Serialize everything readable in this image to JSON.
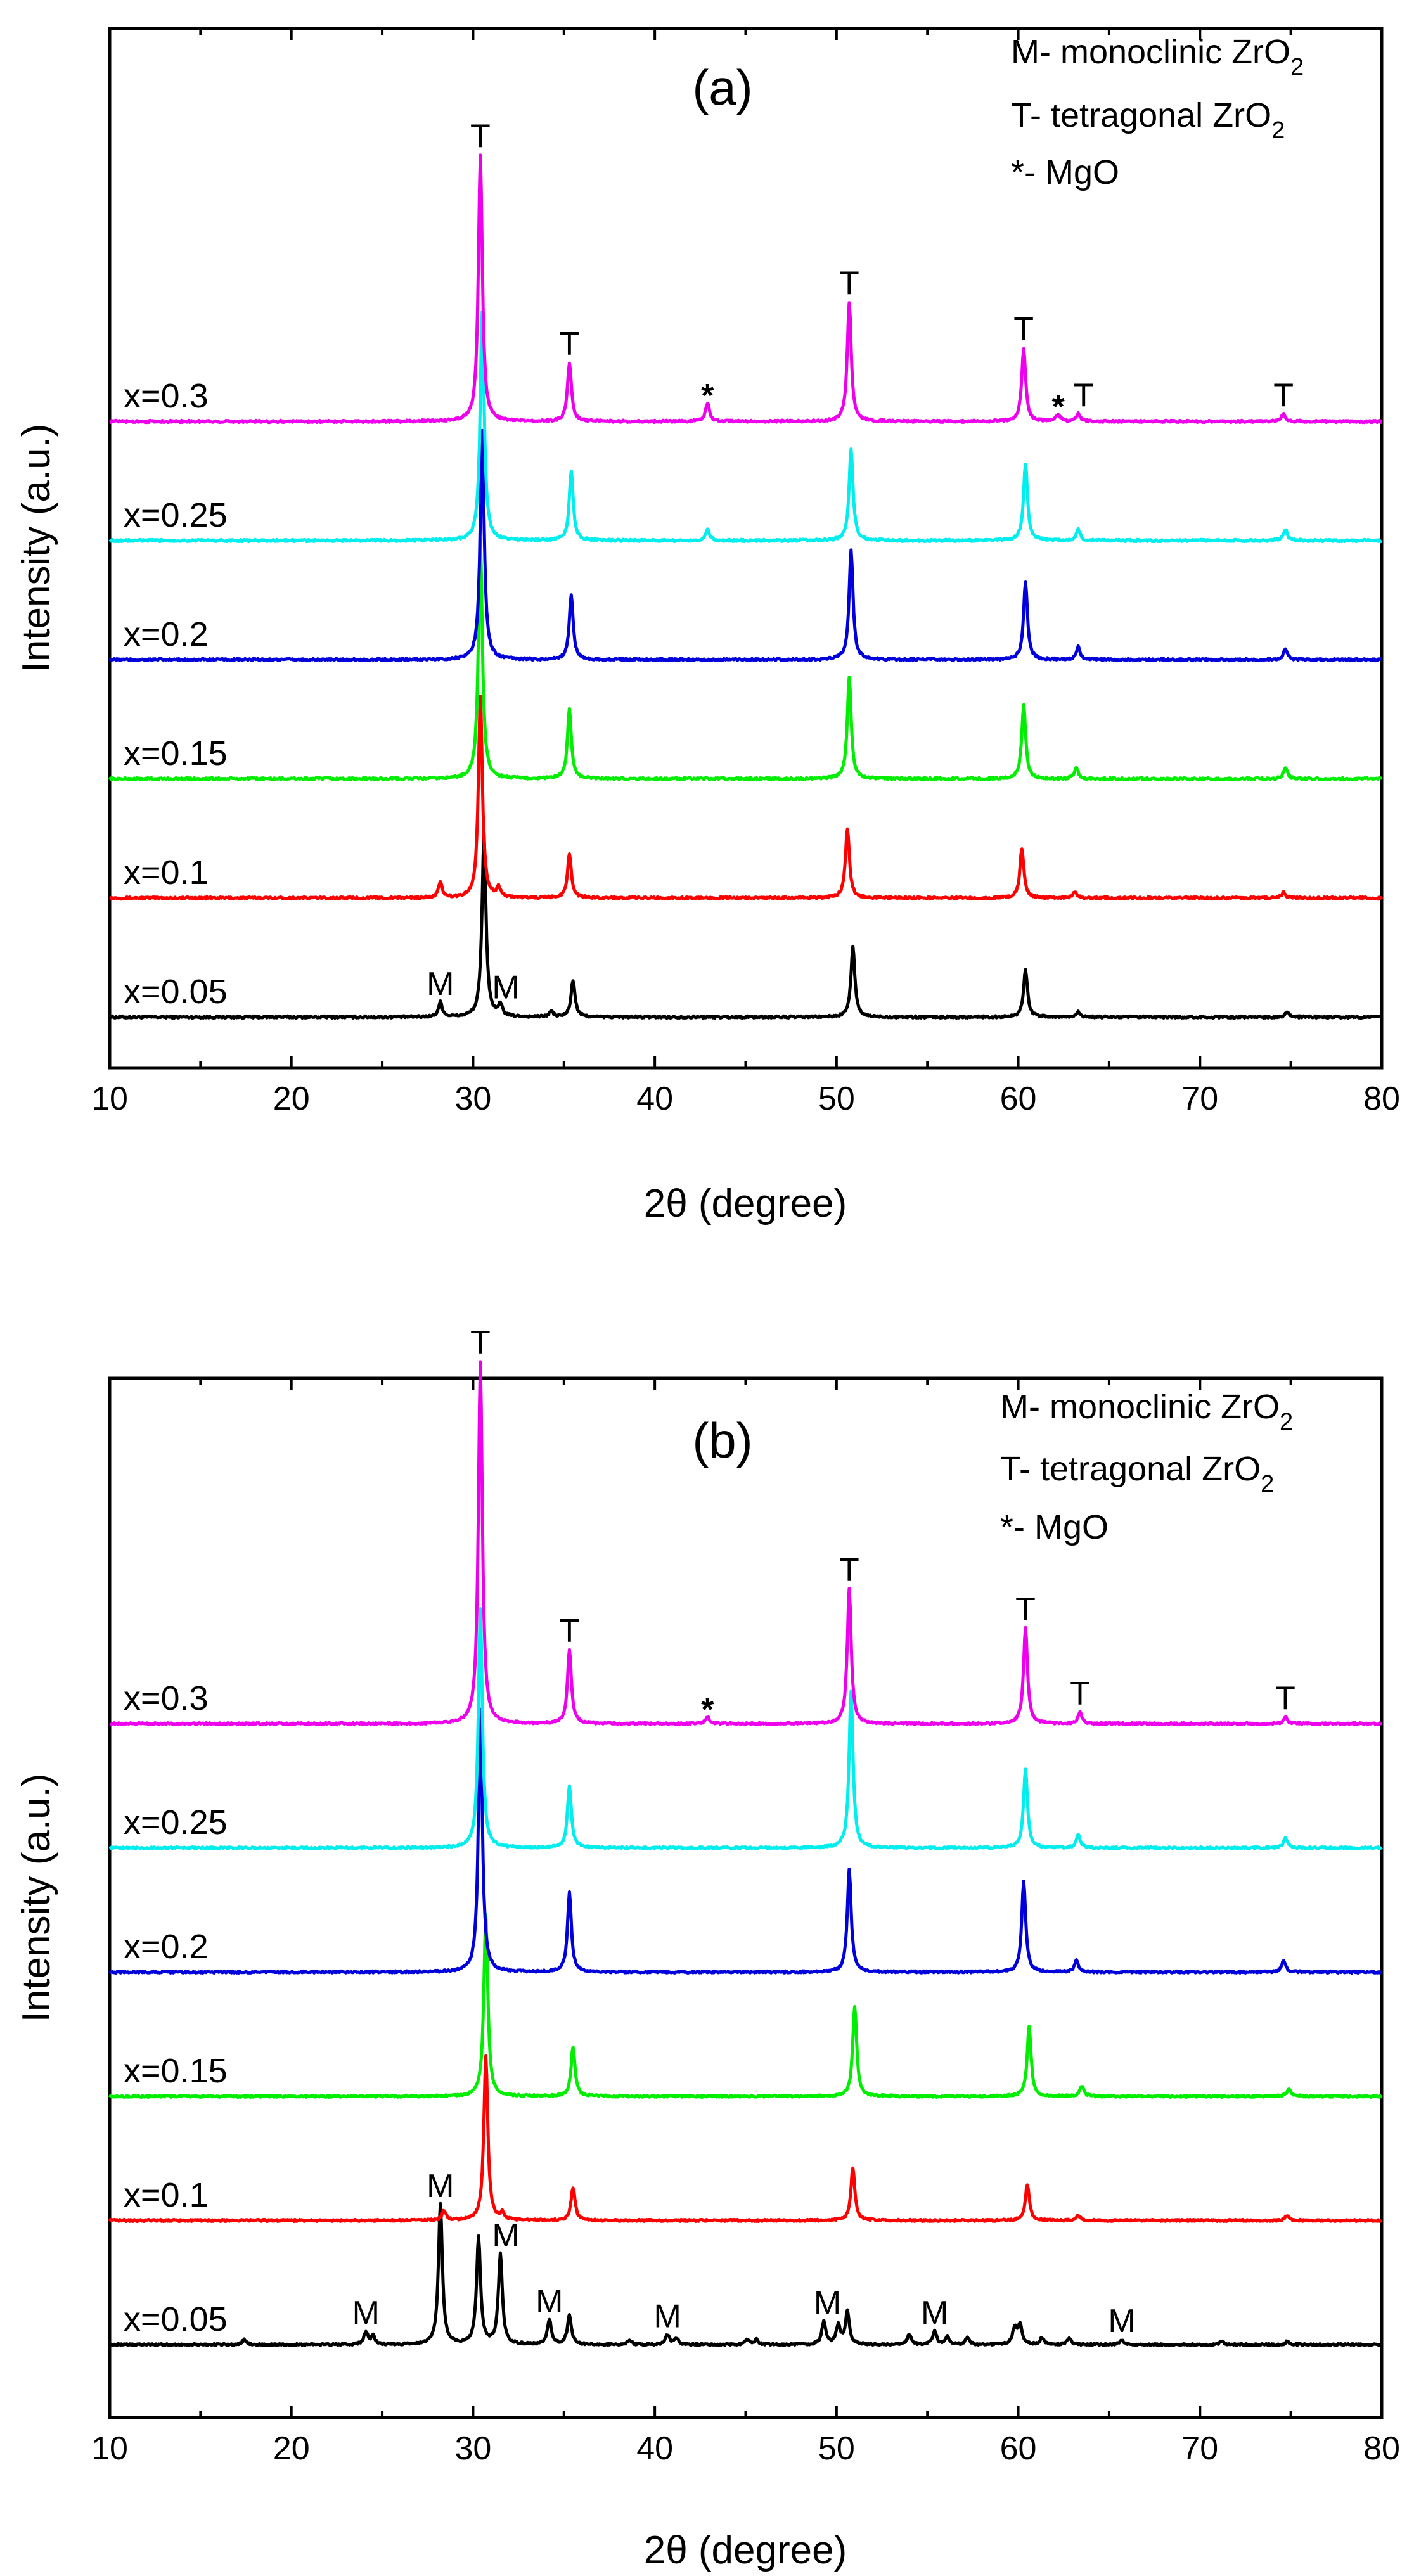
{
  "figure": {
    "xlabel": "2θ (degree)",
    "ylabel": "Intensity (a.u.)"
  },
  "chart_data": [
    {
      "type": "line",
      "panel_label": "(a)",
      "xlim": [
        10,
        80
      ],
      "x_ticks": [
        "10",
        "20",
        "30",
        "40",
        "50",
        "60",
        "70",
        "80"
      ],
      "xlabel": "2θ (degree)",
      "ylabel": "Intensity (a.u.)",
      "legend": [
        {
          "text": "M- monoclinic ZrO",
          "sub": "2"
        },
        {
          "text": "T- tetragonal ZrO",
          "sub": "2"
        },
        {
          "text": "*- MgO",
          "sub": ""
        }
      ],
      "series": [
        {
          "name": "x=0.05",
          "color": "#000000",
          "offset": 0,
          "peaks": [
            [
              28.2,
              0.08
            ],
            [
              30.6,
              1.0
            ],
            [
              31.5,
              0.06
            ],
            [
              34.3,
              0.03
            ],
            [
              35.5,
              0.2
            ],
            [
              50.9,
              0.38
            ],
            [
              60.4,
              0.26
            ],
            [
              63.3,
              0.03
            ],
            [
              74.8,
              0.03
            ]
          ]
        },
        {
          "name": "x=0.1",
          "color": "#ff0000",
          "offset": 1,
          "peaks": [
            [
              28.2,
              0.08
            ],
            [
              30.4,
              1.1
            ],
            [
              31.4,
              0.05
            ],
            [
              35.3,
              0.24
            ],
            [
              50.6,
              0.38
            ],
            [
              60.2,
              0.27
            ],
            [
              63.1,
              0.03
            ],
            [
              74.6,
              0.03
            ]
          ]
        },
        {
          "name": "x=0.15",
          "color": "#00ee00",
          "offset": 2,
          "peaks": [
            [
              30.4,
              1.3
            ],
            [
              35.3,
              0.38
            ],
            [
              50.7,
              0.55
            ],
            [
              60.3,
              0.4
            ],
            [
              63.2,
              0.06
            ],
            [
              74.7,
              0.06
            ]
          ]
        },
        {
          "name": "x=0.2",
          "color": "#0000dd",
          "offset": 3,
          "peaks": [
            [
              30.5,
              1.25
            ],
            [
              35.4,
              0.35
            ],
            [
              50.8,
              0.6
            ],
            [
              60.4,
              0.42
            ],
            [
              63.3,
              0.07
            ],
            [
              74.7,
              0.06
            ]
          ]
        },
        {
          "name": "x=0.25",
          "color": "#00eeee",
          "offset": 4,
          "peaks": [
            [
              30.5,
              1.25
            ],
            [
              35.4,
              0.38
            ],
            [
              42.9,
              0.06
            ],
            [
              50.8,
              0.5
            ],
            [
              60.4,
              0.42
            ],
            [
              63.3,
              0.06
            ],
            [
              74.7,
              0.06
            ]
          ]
        },
        {
          "name": "x=0.3",
          "color": "#ee00ee",
          "offset": 5,
          "peaks": [
            [
              30.4,
              1.45
            ],
            [
              35.3,
              0.32
            ],
            [
              42.9,
              0.1
            ],
            [
              50.7,
              0.65
            ],
            [
              60.3,
              0.4
            ],
            [
              62.2,
              0.04
            ],
            [
              63.3,
              0.04
            ],
            [
              74.6,
              0.04
            ]
          ]
        }
      ],
      "annotations": [
        {
          "text": "T",
          "x": 30.4,
          "on": 5,
          "dy": 1.45
        },
        {
          "text": "T",
          "x": 35.3,
          "on": 5,
          "dy": 0.32
        },
        {
          "text": "*",
          "x": 42.9,
          "on": 5,
          "dy": 0.1
        },
        {
          "text": "T",
          "x": 50.7,
          "on": 5,
          "dy": 0.65
        },
        {
          "text": "T",
          "x": 60.3,
          "on": 5,
          "dy": 0.4
        },
        {
          "text": "*",
          "x": 62.2,
          "on": 5,
          "dy": 0.04
        },
        {
          "text": "T",
          "x": 63.6,
          "on": 5,
          "dy": 0.04
        },
        {
          "text": "T",
          "x": 74.6,
          "on": 5,
          "dy": 0.04
        },
        {
          "text": "M",
          "x": 28.2,
          "on": 0,
          "dy": 0.08
        },
        {
          "text": "M",
          "x": 31.8,
          "on": 0,
          "dy": 0.06
        }
      ]
    },
    {
      "type": "line",
      "panel_label": "(b)",
      "xlim": [
        10,
        80
      ],
      "x_ticks": [
        "10",
        "20",
        "30",
        "40",
        "50",
        "60",
        "70",
        "80"
      ],
      "xlabel": "2θ (degree)",
      "ylabel": "Intensity (a.u.)",
      "legend": [
        {
          "text": "M- monoclinic ZrO",
          "sub": "2"
        },
        {
          "text": "T- tetragonal ZrO",
          "sub": "2"
        },
        {
          "text": "*- MgO",
          "sub": ""
        }
      ],
      "series": [
        {
          "name": "x=0.05",
          "color": "#000000",
          "offset": 0,
          "peaks": [
            [
              17.4,
              0.03
            ],
            [
              24.1,
              0.08
            ],
            [
              24.5,
              0.05
            ],
            [
              28.2,
              0.85
            ],
            [
              30.3,
              0.65
            ],
            [
              31.5,
              0.55
            ],
            [
              34.2,
              0.15
            ],
            [
              35.3,
              0.18
            ],
            [
              38.6,
              0.03
            ],
            [
              40.7,
              0.06
            ],
            [
              41.2,
              0.04
            ],
            [
              45.1,
              0.03
            ],
            [
              45.6,
              0.03
            ],
            [
              49.3,
              0.14
            ],
            [
              50.1,
              0.12
            ],
            [
              50.6,
              0.2
            ],
            [
              54.0,
              0.06
            ],
            [
              55.4,
              0.08
            ],
            [
              56.1,
              0.05
            ],
            [
              57.2,
              0.04
            ],
            [
              59.8,
              0.1
            ],
            [
              60.1,
              0.12
            ],
            [
              61.3,
              0.04
            ],
            [
              62.8,
              0.04
            ],
            [
              65.7,
              0.03
            ],
            [
              71.2,
              0.02
            ],
            [
              74.8,
              0.02
            ]
          ]
        },
        {
          "name": "x=0.1",
          "color": "#ff0000",
          "offset": 1,
          "peaks": [
            [
              28.4,
              0.06
            ],
            [
              30.7,
              1.0
            ],
            [
              31.6,
              0.04
            ],
            [
              35.5,
              0.2
            ],
            [
              50.9,
              0.32
            ],
            [
              60.5,
              0.22
            ],
            [
              63.3,
              0.03
            ],
            [
              74.8,
              0.03
            ]
          ]
        },
        {
          "name": "x=0.15",
          "color": "#00ee00",
          "offset": 2,
          "peaks": [
            [
              30.7,
              1.1
            ],
            [
              35.5,
              0.3
            ],
            [
              51.0,
              0.55
            ],
            [
              60.6,
              0.42
            ],
            [
              63.5,
              0.06
            ],
            [
              74.9,
              0.05
            ]
          ]
        },
        {
          "name": "x=0.2",
          "color": "#0000dd",
          "offset": 3,
          "peaks": [
            [
              30.4,
              1.6
            ],
            [
              35.3,
              0.48
            ],
            [
              50.7,
              0.62
            ],
            [
              60.3,
              0.55
            ],
            [
              63.2,
              0.07
            ],
            [
              74.6,
              0.07
            ]
          ]
        },
        {
          "name": "x=0.25",
          "color": "#00eeee",
          "offset": 4,
          "peaks": [
            [
              30.4,
              1.45
            ],
            [
              35.3,
              0.38
            ],
            [
              50.8,
              0.95
            ],
            [
              60.4,
              0.48
            ],
            [
              63.3,
              0.08
            ],
            [
              74.7,
              0.06
            ]
          ]
        },
        {
          "name": "x=0.3",
          "color": "#ee00ee",
          "offset": 5,
          "peaks": [
            [
              30.4,
              2.2
            ],
            [
              35.3,
              0.45
            ],
            [
              42.9,
              0.04
            ],
            [
              50.7,
              0.82
            ],
            [
              60.4,
              0.58
            ],
            [
              63.4,
              0.07
            ],
            [
              74.7,
              0.04
            ]
          ]
        }
      ],
      "annotations": [
        {
          "text": "T",
          "x": 30.4,
          "on": 5,
          "dy": 2.2
        },
        {
          "text": "T",
          "x": 35.3,
          "on": 5,
          "dy": 0.45
        },
        {
          "text": "*",
          "x": 42.9,
          "on": 5,
          "dy": 0.04
        },
        {
          "text": "T",
          "x": 50.7,
          "on": 5,
          "dy": 0.82
        },
        {
          "text": "T",
          "x": 60.4,
          "on": 5,
          "dy": 0.58
        },
        {
          "text": "T",
          "x": 63.4,
          "on": 5,
          "dy": 0.07
        },
        {
          "text": "T",
          "x": 74.7,
          "on": 5,
          "dy": 0.04
        },
        {
          "text": "M",
          "x": 24.1,
          "on": 0,
          "dy": 0.08
        },
        {
          "text": "M",
          "x": 28.2,
          "on": 0,
          "dy": 0.85
        },
        {
          "text": "M",
          "x": 31.8,
          "on": 0,
          "dy": 0.55
        },
        {
          "text": "M",
          "x": 34.2,
          "on": 0,
          "dy": 0.15
        },
        {
          "text": "M",
          "x": 40.7,
          "on": 0,
          "dy": 0.06
        },
        {
          "text": "M",
          "x": 49.5,
          "on": 0,
          "dy": 0.14
        },
        {
          "text": "M",
          "x": 55.4,
          "on": 0,
          "dy": 0.08
        },
        {
          "text": "M",
          "x": 65.7,
          "on": 0,
          "dy": 0.03
        }
      ]
    }
  ]
}
